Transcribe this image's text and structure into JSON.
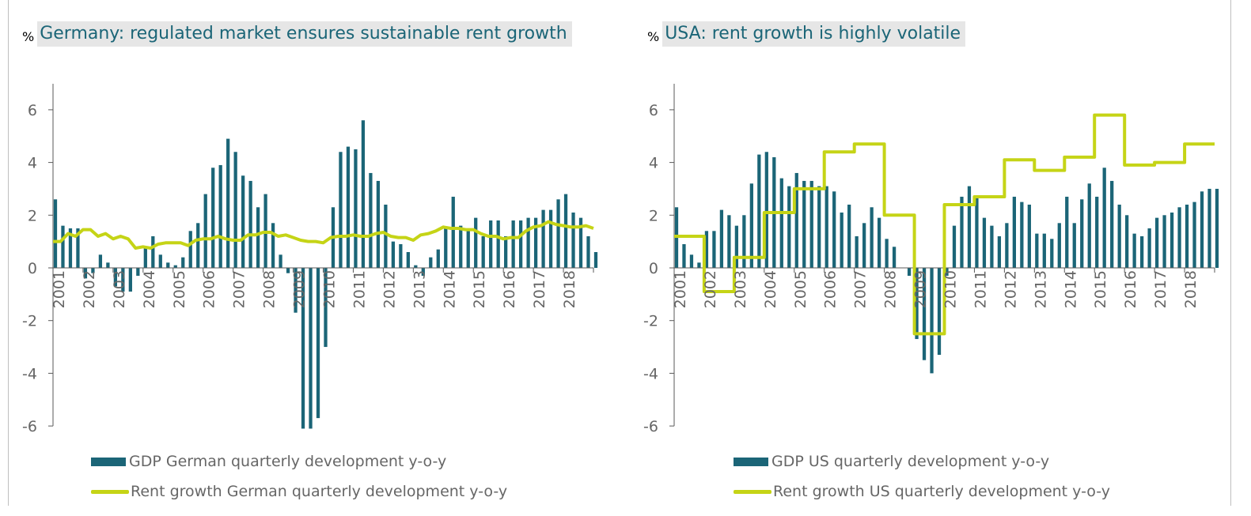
{
  "colors": {
    "bar": "#1b6577",
    "line": "#c5d416",
    "axis": "#595959",
    "text": "#666666",
    "title": "#1b6577",
    "title_bg": "#e6e6e6"
  },
  "chart_data": [
    {
      "type": "bar+line",
      "unit": "%",
      "title": "Germany: regulated market ensures sustainable rent growth",
      "ylim": [
        -6,
        7
      ],
      "yticks": [
        6,
        4,
        2,
        0,
        -2,
        -4,
        -6
      ],
      "x_start": 2001,
      "x_end": 2019,
      "x_tick_labels": [
        "2001",
        "2002",
        "2003",
        "2004",
        "2005",
        "2006",
        "2007",
        "2008",
        "2009",
        "2010",
        "2011",
        "2012",
        "2013",
        "2014",
        "2015",
        "2016",
        "2017",
        "2018"
      ],
      "grid": false,
      "series": [
        {
          "name": "GDP German quarterly development y-o-y",
          "type": "bar",
          "x_start": 2001.0,
          "step": 0.25,
          "values": [
            2.6,
            1.6,
            1.5,
            1.5,
            -0.4,
            -0.2,
            0.5,
            0.2,
            -0.7,
            -0.9,
            -0.9,
            -0.3,
            0.8,
            1.2,
            0.5,
            0.2,
            0.1,
            0.4,
            1.4,
            1.7,
            2.8,
            3.8,
            3.9,
            4.9,
            4.4,
            3.5,
            3.3,
            2.3,
            2.8,
            1.7,
            0.5,
            -0.2,
            -1.7,
            -6.1,
            -6.1,
            -5.7,
            -3.0,
            2.3,
            4.4,
            4.6,
            4.5,
            5.6,
            3.6,
            3.3,
            2.4,
            1.0,
            0.9,
            0.6,
            0.1,
            -0.3,
            0.4,
            0.7,
            1.5,
            2.7,
            1.6,
            1.4,
            1.9,
            1.2,
            1.8,
            1.8,
            1.2,
            1.8,
            1.8,
            1.9,
            1.9,
            2.2,
            2.2,
            2.6,
            2.8,
            2.1,
            1.9,
            1.2,
            0.6
          ]
        },
        {
          "name": "Rent growth German quarterly development y-o-y",
          "type": "line",
          "x_start": 2001.0,
          "step": 0.25,
          "values": [
            1.0,
            1.0,
            1.3,
            1.2,
            1.45,
            1.45,
            1.2,
            1.3,
            1.1,
            1.2,
            1.1,
            0.75,
            0.8,
            0.75,
            0.9,
            0.95,
            0.95,
            0.95,
            0.85,
            1.05,
            1.1,
            1.1,
            1.2,
            1.1,
            1.05,
            1.05,
            1.25,
            1.25,
            1.35,
            1.35,
            1.2,
            1.25,
            1.15,
            1.05,
            1.0,
            1.0,
            0.95,
            1.15,
            1.2,
            1.2,
            1.25,
            1.2,
            1.2,
            1.3,
            1.35,
            1.2,
            1.15,
            1.15,
            1.05,
            1.25,
            1.3,
            1.4,
            1.55,
            1.5,
            1.5,
            1.45,
            1.45,
            1.3,
            1.2,
            1.2,
            1.1,
            1.15,
            1.15,
            1.4,
            1.55,
            1.6,
            1.75,
            1.65,
            1.6,
            1.55,
            1.55,
            1.6,
            1.5
          ]
        }
      ]
    },
    {
      "type": "bar+line",
      "unit": "%",
      "title": "USA: rent growth is highly volatile",
      "ylim": [
        -6,
        7
      ],
      "yticks": [
        6,
        4,
        2,
        0,
        -2,
        -4,
        -6
      ],
      "x_start": 2001,
      "x_end": 2019,
      "x_tick_labels": [
        "2001",
        "2002",
        "2003",
        "2004",
        "2005",
        "2006",
        "2007",
        "2008",
        "2009",
        "2010",
        "2011",
        "2012",
        "2013",
        "2014",
        "2015",
        "2016",
        "2017",
        "2018"
      ],
      "grid": false,
      "series": [
        {
          "name": "GDP US quarterly development y-o-y",
          "type": "bar",
          "x_start": 2001.0,
          "step": 0.25,
          "values": [
            2.3,
            0.9,
            0.5,
            0.2,
            1.4,
            1.4,
            2.2,
            2.0,
            1.6,
            2.0,
            3.2,
            4.3,
            4.4,
            4.2,
            3.4,
            3.1,
            3.6,
            3.3,
            3.3,
            3.1,
            3.1,
            2.9,
            2.1,
            2.4,
            1.2,
            1.7,
            2.3,
            1.9,
            1.1,
            0.8,
            0.0,
            -0.3,
            -2.7,
            -3.5,
            -4.0,
            -3.3,
            -0.3,
            1.6,
            2.7,
            3.1,
            2.7,
            1.9,
            1.6,
            1.2,
            1.7,
            2.7,
            2.5,
            2.4,
            1.3,
            1.3,
            1.1,
            1.7,
            2.7,
            1.7,
            2.6,
            3.2,
            2.7,
            3.8,
            3.3,
            2.4,
            2.0,
            1.3,
            1.2,
            1.5,
            1.9,
            2.0,
            2.1,
            2.3,
            2.4,
            2.5,
            2.9,
            3.0,
            3.0
          ]
        },
        {
          "name": "Rent growth US quarterly development y-o-y",
          "type": "step-line",
          "x_start": 2001.0,
          "step": 0.25,
          "values": [
            1.2,
            1.2,
            1.2,
            1.2,
            -0.9,
            -0.9,
            -0.9,
            -0.9,
            0.4,
            0.4,
            0.4,
            0.4,
            2.1,
            2.1,
            2.1,
            2.1,
            3.0,
            3.0,
            3.0,
            3.0,
            4.4,
            4.4,
            4.4,
            4.4,
            4.7,
            4.7,
            4.7,
            4.7,
            2.0,
            2.0,
            2.0,
            2.0,
            -2.5,
            -2.5,
            -2.5,
            -2.5,
            2.4,
            2.4,
            2.4,
            2.4,
            2.7,
            2.7,
            2.7,
            2.7,
            4.1,
            4.1,
            4.1,
            4.1,
            3.7,
            3.7,
            3.7,
            3.7,
            4.2,
            4.2,
            4.2,
            4.2,
            5.8,
            5.8,
            5.8,
            5.8,
            3.9,
            3.9,
            3.9,
            3.9,
            4.0,
            4.0,
            4.0,
            4.0,
            4.7,
            4.7,
            4.7,
            4.7,
            4.7
          ]
        }
      ]
    }
  ]
}
